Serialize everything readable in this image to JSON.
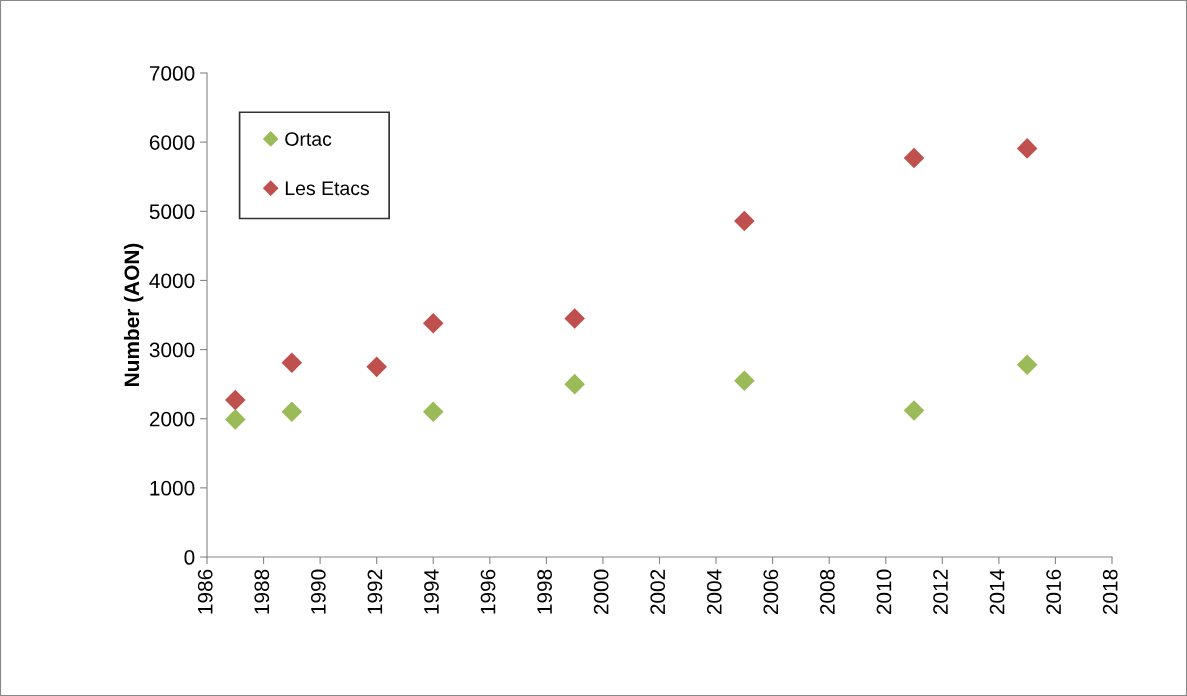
{
  "chart_data": {
    "type": "scatter",
    "ylabel": "Number (AON)",
    "x": [
      1987,
      1989,
      1994,
      1999,
      2005,
      2011,
      2015
    ],
    "series": [
      {
        "name": "Ortac",
        "color": "#9bbb59",
        "values": [
          1990,
          2100,
          2100,
          2500,
          2550,
          2120,
          2780
        ]
      },
      {
        "name": "Les Etacs",
        "color": "#c0504d",
        "x": [
          1987,
          1989,
          1992,
          1994,
          1999,
          2005,
          2011,
          2015
        ],
        "values": [
          2270,
          2810,
          2750,
          3380,
          3450,
          4860,
          5770,
          5910
        ]
      }
    ],
    "xlim": [
      1986,
      2018
    ],
    "xticks": [
      1986,
      1988,
      1990,
      1992,
      1994,
      1996,
      1998,
      2000,
      2002,
      2004,
      2006,
      2008,
      2010,
      2012,
      2014,
      2016,
      2018
    ],
    "ylim": [
      0,
      7000
    ],
    "yticks": [
      0,
      1000,
      2000,
      3000,
      4000,
      5000,
      6000,
      7000
    ],
    "marker": "diamond",
    "grid": false,
    "legend": "top left"
  }
}
